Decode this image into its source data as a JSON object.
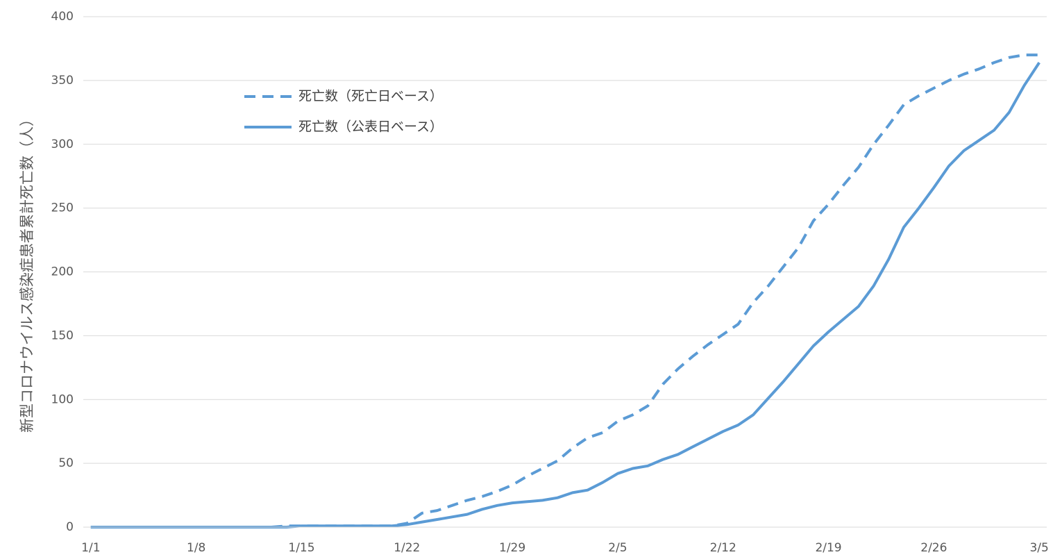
{
  "chart_data": {
    "type": "line",
    "y_label": "新型コロナウイルス感染症患者累計死亡数（人）",
    "categories": [
      "1/1",
      null,
      null,
      null,
      null,
      null,
      null,
      "1/8",
      null,
      null,
      null,
      null,
      null,
      null,
      "1/15",
      null,
      null,
      null,
      null,
      null,
      null,
      "1/22",
      null,
      null,
      null,
      null,
      null,
      null,
      "1/29",
      null,
      null,
      null,
      null,
      null,
      null,
      "2/5",
      null,
      null,
      null,
      null,
      null,
      null,
      "2/12",
      null,
      null,
      null,
      null,
      null,
      null,
      "2/19",
      null,
      null,
      null,
      null,
      null,
      null,
      "2/26",
      null,
      null,
      null,
      null,
      null,
      null,
      "3/5"
    ],
    "series": [
      {
        "name": "死亡数（死亡日ベース）",
        "color": "#5b9bd5",
        "line_style": "dashed",
        "values": [
          0,
          0,
          0,
          0,
          0,
          0,
          0,
          0,
          0,
          0,
          0,
          0,
          0,
          1,
          1,
          1,
          1,
          1,
          1,
          1,
          1,
          3,
          11,
          13,
          17,
          21,
          24,
          28,
          33,
          40,
          46,
          52,
          62,
          70,
          74,
          83,
          88,
          95,
          112,
          124,
          134,
          143,
          151,
          159,
          176,
          189,
          204,
          219,
          240,
          253,
          268,
          282,
          300,
          315,
          331,
          338,
          344,
          350,
          355,
          359,
          364,
          368,
          370,
          370
        ]
      },
      {
        "name": "死亡数（公表日ベース）",
        "color": "#5b9bd5",
        "line_style": "solid",
        "values": [
          0,
          0,
          0,
          0,
          0,
          0,
          0,
          0,
          0,
          0,
          0,
          0,
          0,
          0,
          1,
          1,
          1,
          1,
          1,
          1,
          1,
          2,
          4,
          6,
          8,
          10,
          14,
          17,
          19,
          20,
          21,
          23,
          27,
          29,
          35,
          42,
          46,
          48,
          53,
          57,
          63,
          69,
          75,
          80,
          88,
          101,
          114,
          128,
          142,
          153,
          163,
          173,
          189,
          210,
          235,
          250,
          266,
          283,
          295,
          303,
          311,
          325,
          346,
          364
        ]
      }
    ],
    "ylim": [
      0,
      400
    ],
    "yticks": [
      0,
      50,
      100,
      150,
      200,
      250,
      300,
      350,
      400
    ],
    "grid": true
  }
}
